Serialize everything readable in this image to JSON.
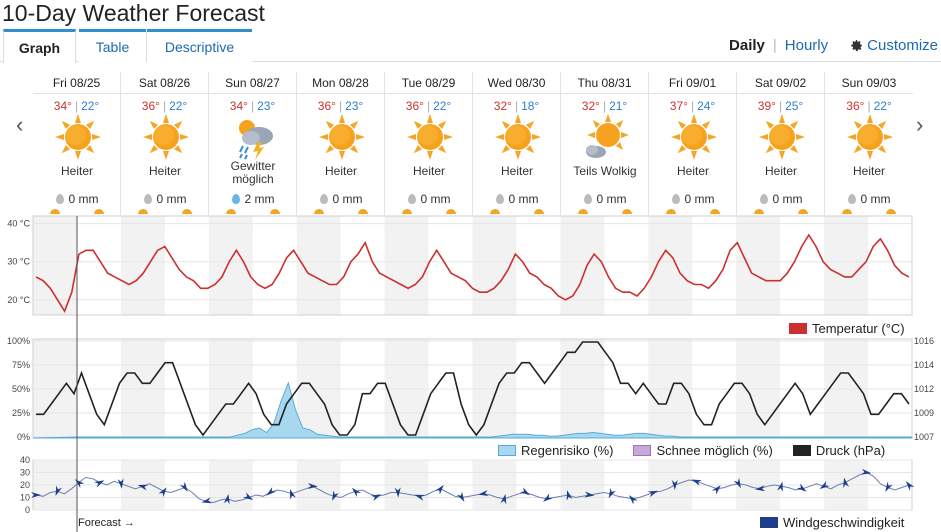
{
  "title": "10-Day Weather Forecast",
  "tabs": [
    {
      "label": "Graph",
      "active": true
    },
    {
      "label": "Table",
      "active": false
    },
    {
      "label": "Descriptive",
      "active": false
    }
  ],
  "view": {
    "daily": "Daily",
    "separator": "|",
    "hourly": "Hourly",
    "customize": "Customize"
  },
  "days": [
    {
      "label": "Fri 08/25",
      "hi": "34°",
      "lo": "22°",
      "cond": "Heiter",
      "rain": "0 mm",
      "icon": "sun-icon"
    },
    {
      "label": "Sat 08/26",
      "hi": "36°",
      "lo": "22°",
      "cond": "Heiter",
      "rain": "0 mm",
      "icon": "sun-icon"
    },
    {
      "label": "Sun 08/27",
      "hi": "34°",
      "lo": "23°",
      "cond": "Gewitter möglich",
      "rain": "2 mm",
      "icon": "thunderstorm-icon"
    },
    {
      "label": "Mon 08/28",
      "hi": "36°",
      "lo": "23°",
      "cond": "Heiter",
      "rain": "0 mm",
      "icon": "sun-icon"
    },
    {
      "label": "Tue 08/29",
      "hi": "36°",
      "lo": "22°",
      "cond": "Heiter",
      "rain": "0 mm",
      "icon": "sun-icon"
    },
    {
      "label": "Wed 08/30",
      "hi": "32°",
      "lo": "18°",
      "cond": "Heiter",
      "rain": "0 mm",
      "icon": "sun-icon"
    },
    {
      "label": "Thu 08/31",
      "hi": "32°",
      "lo": "21°",
      "cond": "Teils Wolkig",
      "rain": "0 mm",
      "icon": "partly-cloudy-icon"
    },
    {
      "label": "Fri 09/01",
      "hi": "37°",
      "lo": "24°",
      "cond": "Heiter",
      "rain": "0 mm",
      "icon": "sun-icon"
    },
    {
      "label": "Sat 09/02",
      "hi": "39°",
      "lo": "25°",
      "cond": "Heiter",
      "rain": "0 mm",
      "icon": "sun-icon"
    },
    {
      "label": "Sun 09/03",
      "hi": "36°",
      "lo": "22°",
      "cond": "Heiter",
      "rain": "0 mm",
      "icon": "sun-icon"
    }
  ],
  "chart_data": [
    {
      "type": "line",
      "ylabels": [
        "40 °C",
        "30 °C",
        "20 °C"
      ],
      "yvalues": [
        40,
        30,
        20
      ],
      "ylim": [
        16,
        42
      ],
      "legend": "Temperatur (°C)",
      "color": "#cc2f2f",
      "series": [
        {
          "values": [
            26,
            25,
            23,
            20,
            17,
            22,
            32,
            33,
            33,
            30,
            27,
            26,
            25,
            24,
            25,
            27,
            30,
            33,
            34,
            31,
            28,
            26,
            25,
            23,
            23,
            24,
            26,
            30,
            33,
            30,
            26,
            24,
            23,
            24,
            27,
            31,
            33,
            30,
            27,
            26,
            25,
            24,
            24,
            26,
            30,
            32,
            35,
            30,
            27,
            26,
            25,
            24,
            23,
            24,
            26,
            30,
            33,
            30,
            27,
            26,
            25,
            23,
            22,
            22,
            23,
            25,
            28,
            32,
            30,
            27,
            26,
            24,
            23,
            21,
            20,
            21,
            24,
            29,
            32,
            30,
            26,
            23,
            22,
            22,
            21,
            23,
            26,
            30,
            33,
            31,
            27,
            25,
            24,
            24,
            23,
            25,
            28,
            33,
            35,
            31,
            27,
            26,
            25,
            25,
            25,
            27,
            30,
            34,
            37,
            34,
            30,
            28,
            27,
            26,
            26,
            28,
            30,
            34,
            36,
            33,
            29,
            27,
            26
          ]
        }
      ]
    },
    {
      "type": "line",
      "left_ticks": [
        "100%",
        "75%",
        "50%",
        "25%",
        "0%"
      ],
      "right_ticks": [
        "1016",
        "1014",
        "1012",
        "1009",
        "1007"
      ],
      "pressure_range": [
        1007,
        1016
      ],
      "legend": [
        {
          "label": "Regenrisiko (%)",
          "color": "#a8d8f0"
        },
        {
          "label": "Schnee möglich (%)",
          "color": "#c8a8d8"
        },
        {
          "label": "Druck (hPa)",
          "color": "#222222"
        }
      ],
      "series": [
        {
          "name": "Druck (hPa)",
          "values": [
            1009,
            1009,
            1010,
            1011,
            1012,
            1011,
            1013,
            1011,
            1009,
            1008,
            1010,
            1012,
            1013,
            1013,
            1012,
            1012,
            1013,
            1014,
            1014,
            1012,
            1010,
            1008,
            1007,
            1008,
            1009,
            1010,
            1010,
            1011,
            1012,
            1011,
            1009,
            1008,
            1008,
            1010,
            1011,
            1012,
            1012,
            1011,
            1010,
            1008,
            1007,
            1007,
            1008,
            1011,
            1011,
            1012,
            1012,
            1010,
            1008,
            1007,
            1007,
            1009,
            1011,
            1012,
            1013,
            1013,
            1010,
            1008,
            1007,
            1008,
            1010,
            1012,
            1013,
            1013,
            1014,
            1014,
            1013,
            1012,
            1013,
            1014,
            1015,
            1015,
            1016,
            1016,
            1016,
            1015,
            1014,
            1012,
            1012,
            1011,
            1012,
            1011,
            1010,
            1010,
            1012,
            1012,
            1011,
            1009,
            1008,
            1008,
            1010,
            1011,
            1012,
            1012,
            1011,
            1009,
            1008,
            1009,
            1010,
            1011,
            1012,
            1011,
            1009,
            1010,
            1011,
            1012,
            1013,
            1013,
            1012,
            1011,
            1009,
            1009,
            1010,
            1011,
            1011,
            1010
          ]
        },
        {
          "name": "Regenrisiko (%)",
          "values": [
            0,
            0,
            0,
            0,
            0,
            0,
            0,
            0,
            0,
            0,
            0,
            0,
            0,
            0,
            0,
            0,
            0,
            0,
            0,
            0,
            0,
            0,
            2,
            4,
            8,
            10,
            5,
            15,
            40,
            60,
            30,
            10,
            8,
            3,
            2,
            1,
            0,
            0,
            0,
            0,
            0,
            0,
            0,
            0,
            0,
            0,
            0,
            0,
            0,
            0,
            0,
            0,
            0,
            0,
            0,
            0,
            0,
            0,
            1,
            2,
            3,
            3,
            3,
            2,
            2,
            1,
            1,
            2,
            3,
            4,
            4,
            5,
            4,
            3,
            2,
            2,
            3,
            4,
            4,
            3,
            2,
            1,
            1,
            0,
            0,
            0,
            0,
            0,
            0,
            0,
            0,
            0,
            0,
            0,
            0,
            0,
            0,
            0,
            0,
            0,
            0,
            0,
            0,
            0,
            0,
            0,
            0,
            0,
            0,
            0,
            0,
            0,
            0,
            0,
            0,
            0
          ]
        },
        {
          "name": "Schnee möglich (%)",
          "values": []
        }
      ]
    },
    {
      "type": "line",
      "yticks": [
        "40",
        "30",
        "20",
        "10",
        "0"
      ],
      "ylim": [
        0,
        40
      ],
      "legend": "Windgeschwindigkeit",
      "color": "#1e3e8c",
      "series": [
        {
          "values": [
            12,
            11,
            14,
            15,
            13,
            17,
            22,
            26,
            25,
            22,
            20,
            23,
            21,
            19,
            17,
            19,
            21,
            18,
            15,
            14,
            16,
            18,
            14,
            9,
            7,
            6,
            8,
            9,
            7,
            8,
            10,
            12,
            11,
            14,
            16,
            15,
            13,
            15,
            17,
            19,
            16,
            13,
            11,
            10,
            13,
            15,
            16,
            13,
            11,
            12,
            14,
            14,
            13,
            12,
            11,
            12,
            15,
            17,
            14,
            11,
            10,
            11,
            12,
            13,
            12,
            10,
            9,
            11,
            13,
            14,
            12,
            10,
            9,
            10,
            11,
            12,
            10,
            11,
            12,
            13,
            14,
            13,
            11,
            10,
            9,
            10,
            12,
            14,
            15,
            17,
            20,
            22,
            24,
            23,
            21,
            19,
            17,
            18,
            20,
            21,
            20,
            18,
            17,
            19,
            20,
            19,
            18,
            16,
            17,
            19,
            21,
            19,
            17,
            20,
            22,
            25,
            28,
            30,
            27,
            21,
            18,
            16,
            18,
            20
          ]
        }
      ]
    }
  ],
  "forecast_label": "Forecast →"
}
